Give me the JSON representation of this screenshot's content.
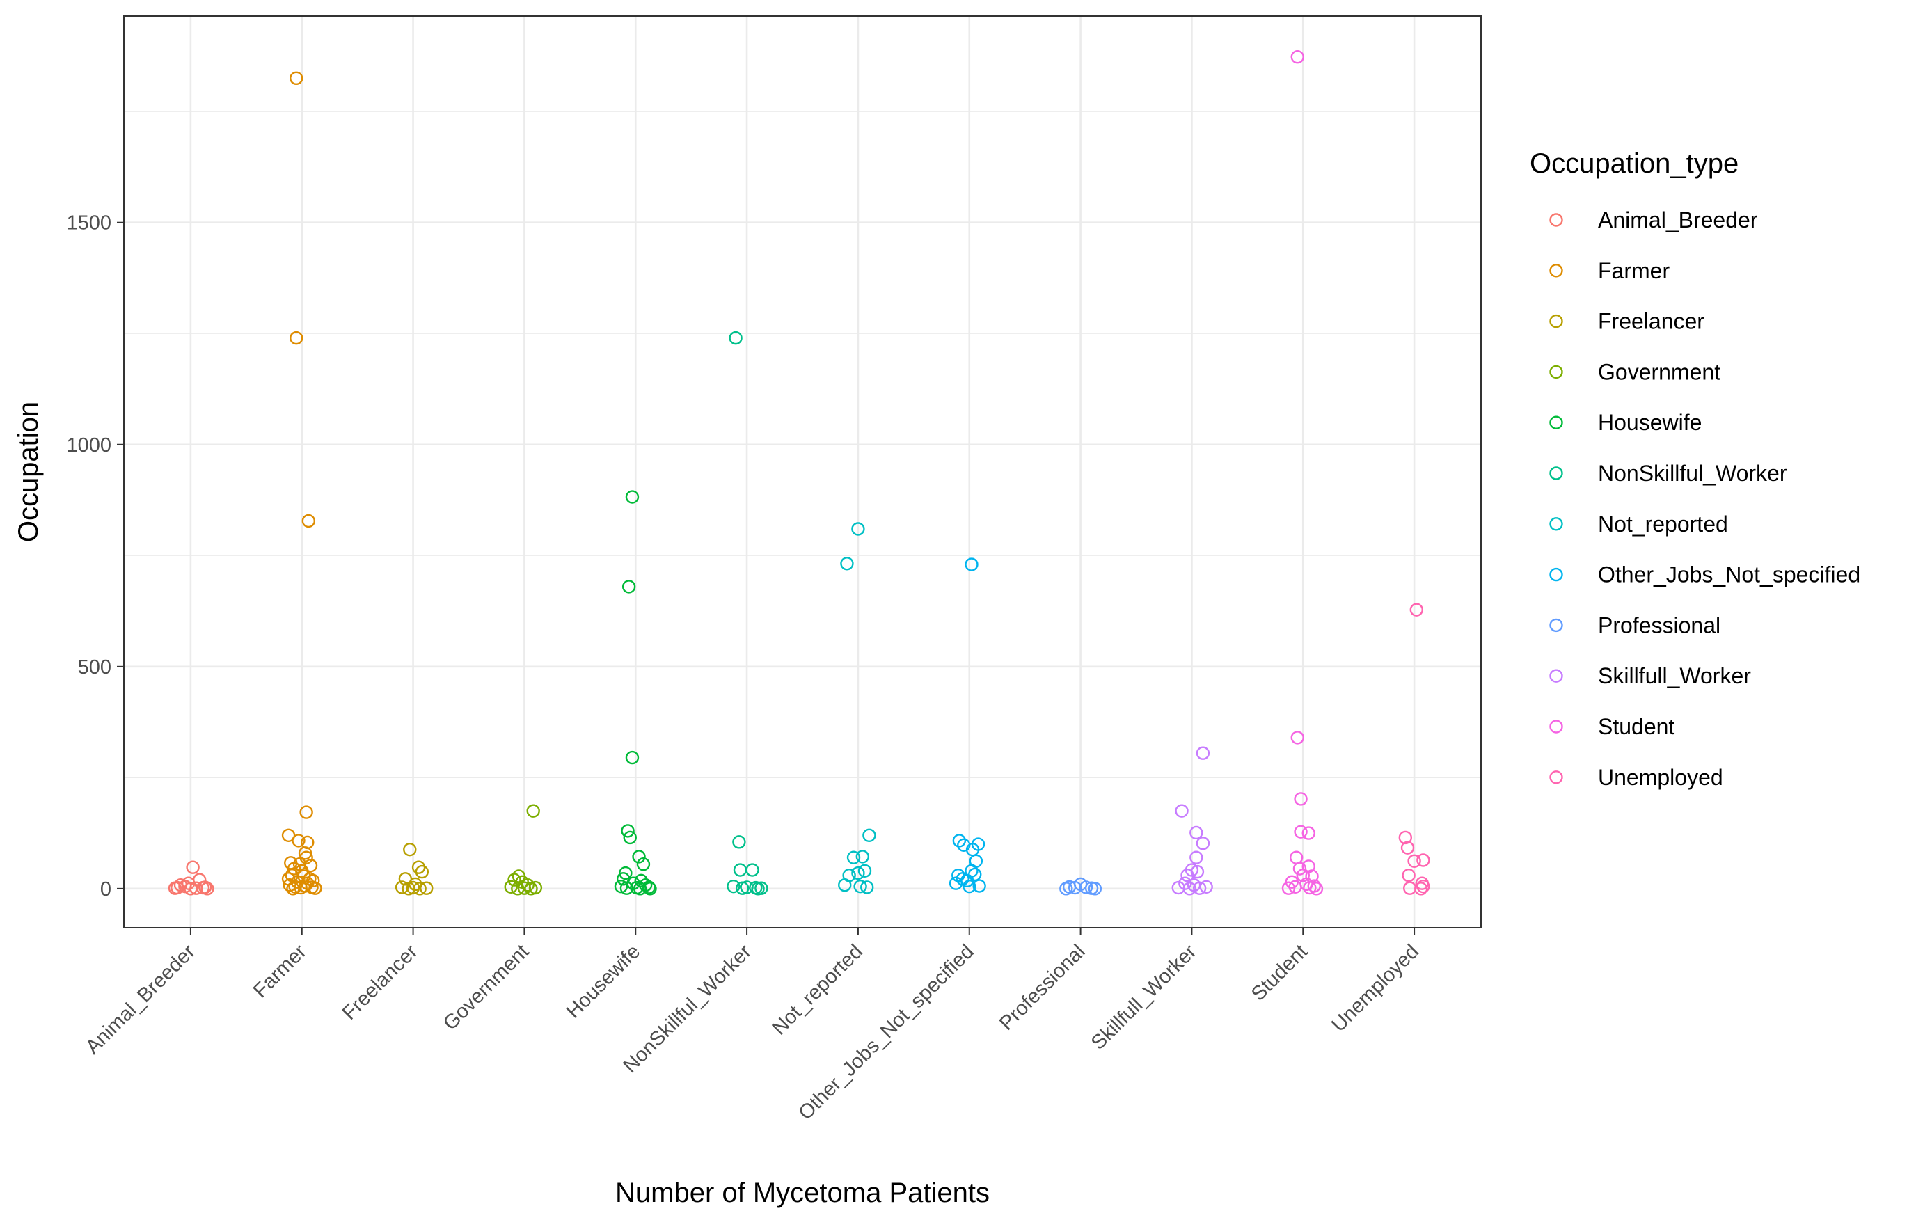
{
  "chart_data": {
    "type": "scatter",
    "xlabel": "Number of Mycetoma Patients",
    "ylabel": "Occupation",
    "categories": [
      "Animal_Breeder",
      "Farmer",
      "Freelancer",
      "Government",
      "Housewife",
      "NonSkillful_Worker",
      "Not_reported",
      "Other_Jobs_Not_specified",
      "Professional",
      "Skillfull_Worker",
      "Student",
      "Unemployed"
    ],
    "ylim": [
      -88,
      1965
    ],
    "yticks": [
      0,
      500,
      1000,
      1500
    ],
    "ytick_labels": [
      "0",
      "500",
      "1000",
      "1500"
    ],
    "grid": true,
    "legend": {
      "title": "Occupation_type",
      "position": "right"
    },
    "series": [
      {
        "name": "Animal_Breeder",
        "color": "#F8766D",
        "points": [
          [
            -0.12,
            2
          ],
          [
            -0.05,
            5
          ],
          [
            0.02,
            48
          ],
          [
            0.08,
            20
          ],
          [
            0.13,
            3
          ],
          [
            -0.14,
            1
          ],
          [
            -0.02,
            12
          ],
          [
            0.05,
            1
          ],
          [
            0.11,
            2
          ],
          [
            -0.09,
            8
          ],
          [
            0.0,
            0
          ],
          [
            0.15,
            0
          ]
        ]
      },
      {
        "name": "Farmer",
        "color": "#DE8C00",
        "points": [
          [
            -0.05,
            1825
          ],
          [
            -0.05,
            1240
          ],
          [
            0.06,
            828
          ],
          [
            0.04,
            172
          ],
          [
            -0.12,
            120
          ],
          [
            -0.03,
            108
          ],
          [
            0.05,
            104
          ],
          [
            0.03,
            80
          ],
          [
            0.04,
            70
          ],
          [
            -0.1,
            58
          ],
          [
            -0.02,
            55
          ],
          [
            0.08,
            52
          ],
          [
            -0.07,
            45
          ],
          [
            0.0,
            40
          ],
          [
            -0.09,
            30
          ],
          [
            0.02,
            28
          ],
          [
            -0.12,
            22
          ],
          [
            0.07,
            22
          ],
          [
            0.1,
            18
          ],
          [
            -0.04,
            15
          ],
          [
            0.05,
            12
          ],
          [
            -0.11,
            8
          ],
          [
            0.03,
            6
          ],
          [
            -0.06,
            4
          ],
          [
            0.09,
            3
          ],
          [
            -0.01,
            2
          ],
          [
            0.12,
            1
          ],
          [
            -0.08,
            0
          ]
        ]
      },
      {
        "name": "Freelancer",
        "color": "#B79F00",
        "points": [
          [
            -0.03,
            88
          ],
          [
            0.05,
            48
          ],
          [
            0.08,
            38
          ],
          [
            -0.07,
            22
          ],
          [
            0.02,
            10
          ],
          [
            -0.1,
            3
          ],
          [
            0.0,
            2
          ],
          [
            0.12,
            1
          ],
          [
            -0.04,
            0
          ],
          [
            0.06,
            0
          ]
        ]
      },
      {
        "name": "Government",
        "color": "#7CAE00",
        "points": [
          [
            0.08,
            175
          ],
          [
            -0.05,
            28
          ],
          [
            -0.09,
            20
          ],
          [
            -0.02,
            15
          ],
          [
            0.03,
            8
          ],
          [
            -0.12,
            4
          ],
          [
            0.1,
            2
          ],
          [
            0.0,
            1
          ],
          [
            0.06,
            0
          ],
          [
            -0.06,
            0
          ]
        ]
      },
      {
        "name": "Housewife",
        "color": "#00BA38",
        "points": [
          [
            -0.03,
            882
          ],
          [
            -0.06,
            680
          ],
          [
            -0.03,
            295
          ],
          [
            -0.07,
            130
          ],
          [
            -0.05,
            115
          ],
          [
            0.03,
            72
          ],
          [
            0.07,
            55
          ],
          [
            -0.09,
            35
          ],
          [
            -0.11,
            22
          ],
          [
            0.05,
            18
          ],
          [
            -0.02,
            12
          ],
          [
            0.09,
            8
          ],
          [
            -0.13,
            5
          ],
          [
            0.12,
            3
          ],
          [
            0.01,
            2
          ],
          [
            -0.08,
            1
          ],
          [
            0.04,
            0
          ],
          [
            0.13,
            0
          ]
        ]
      },
      {
        "name": "NonSkillful_Worker",
        "color": "#00C08B",
        "points": [
          [
            -0.1,
            1240
          ],
          [
            -0.07,
            105
          ],
          [
            -0.06,
            42
          ],
          [
            0.05,
            42
          ],
          [
            -0.12,
            5
          ],
          [
            0.0,
            3
          ],
          [
            0.08,
            2
          ],
          [
            -0.04,
            1
          ],
          [
            0.1,
            0
          ],
          [
            0.13,
            1
          ]
        ]
      },
      {
        "name": "Not_reported",
        "color": "#00BFC4",
        "points": [
          [
            0.0,
            810
          ],
          [
            -0.1,
            732
          ],
          [
            0.1,
            120
          ],
          [
            -0.04,
            70
          ],
          [
            0.04,
            72
          ],
          [
            -0.08,
            30
          ],
          [
            0.0,
            35
          ],
          [
            0.06,
            40
          ],
          [
            -0.12,
            8
          ],
          [
            0.02,
            5
          ],
          [
            0.08,
            3
          ]
        ]
      },
      {
        "name": "Other_Jobs_Not_specified",
        "color": "#00B4EF",
        "points": [
          [
            0.02,
            730
          ],
          [
            -0.09,
            108
          ],
          [
            -0.05,
            98
          ],
          [
            0.08,
            100
          ],
          [
            0.03,
            88
          ],
          [
            0.06,
            62
          ],
          [
            -0.1,
            30
          ],
          [
            0.02,
            40
          ],
          [
            0.05,
            32
          ],
          [
            -0.06,
            22
          ],
          [
            -0.02,
            18
          ],
          [
            -0.12,
            12
          ],
          [
            0.09,
            6
          ],
          [
            0.0,
            5
          ]
        ]
      },
      {
        "name": "Professional",
        "color": "#619CFF",
        "points": [
          [
            0.0,
            10
          ],
          [
            -0.1,
            4
          ],
          [
            -0.05,
            2
          ],
          [
            0.05,
            3
          ],
          [
            0.1,
            1
          ],
          [
            -0.13,
            0
          ],
          [
            0.13,
            0
          ]
        ]
      },
      {
        "name": "Skillfull_Worker",
        "color": "#C77CFF",
        "points": [
          [
            0.1,
            305
          ],
          [
            -0.09,
            175
          ],
          [
            0.04,
            126
          ],
          [
            0.1,
            102
          ],
          [
            0.04,
            70
          ],
          [
            0.0,
            42
          ],
          [
            0.05,
            38
          ],
          [
            -0.04,
            30
          ],
          [
            -0.06,
            12
          ],
          [
            0.02,
            8
          ],
          [
            0.13,
            4
          ],
          [
            -0.12,
            2
          ],
          [
            0.07,
            1
          ],
          [
            -0.02,
            0
          ]
        ]
      },
      {
        "name": "Student",
        "color": "#F564E3",
        "points": [
          [
            -0.05,
            1873
          ],
          [
            -0.05,
            340
          ],
          [
            -0.02,
            202
          ],
          [
            -0.02,
            128
          ],
          [
            0.05,
            125
          ],
          [
            -0.06,
            70
          ],
          [
            0.05,
            50
          ],
          [
            -0.03,
            45
          ],
          [
            0.0,
            30
          ],
          [
            0.08,
            28
          ],
          [
            -0.1,
            15
          ],
          [
            0.03,
            10
          ],
          [
            0.1,
            6
          ],
          [
            -0.07,
            4
          ],
          [
            0.06,
            2
          ],
          [
            -0.13,
            1
          ],
          [
            0.12,
            0
          ]
        ]
      },
      {
        "name": "Unemployed",
        "color": "#FF64B0",
        "points": [
          [
            0.02,
            628
          ],
          [
            -0.08,
            115
          ],
          [
            -0.06,
            92
          ],
          [
            -0.05,
            30
          ],
          [
            0.0,
            62
          ],
          [
            0.08,
            64
          ],
          [
            0.07,
            12
          ],
          [
            0.08,
            5
          ],
          [
            -0.04,
            1
          ],
          [
            0.06,
            0
          ]
        ]
      }
    ]
  }
}
